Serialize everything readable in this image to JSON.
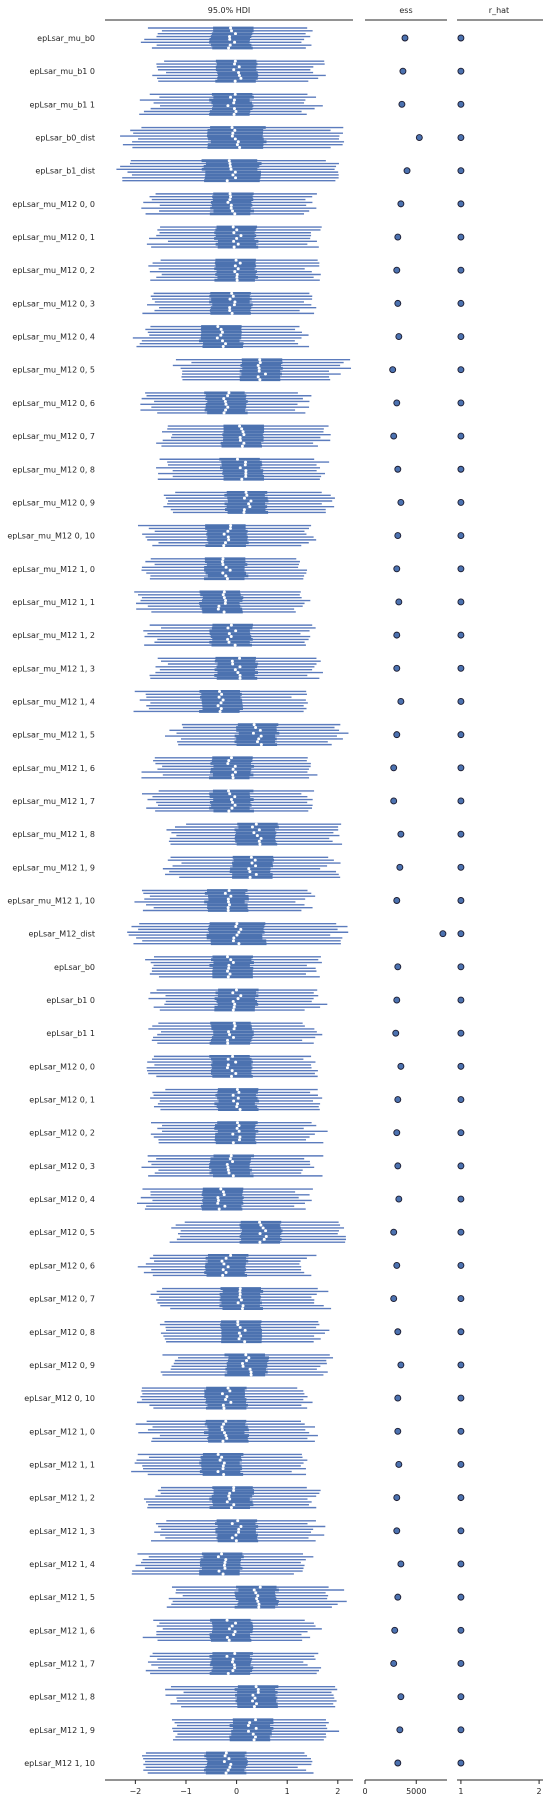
{
  "chart_data": {
    "type": "forest",
    "panels": [
      {
        "title": "95.0% HDI",
        "xlim": [
          -2.6,
          2.3
        ],
        "ticks": [
          -2,
          -1,
          0,
          1,
          2
        ]
      },
      {
        "title": "ess",
        "xlim": [
          0,
          8000
        ],
        "ticks": [
          0,
          5000
        ],
        "tick_labels": [
          "0",
          "5000"
        ]
      },
      {
        "title": "r_hat",
        "xlim": [
          0.95,
          2.05
        ],
        "ticks": [
          1,
          2
        ],
        "tick_labels": [
          "1",
          "2"
        ]
      }
    ],
    "chains": 8,
    "colors": {
      "line": "#5b7bbd",
      "box": "#4c72b0",
      "point": "#ffffff",
      "marker": "#4c72b0",
      "axis": "#262626"
    },
    "rows": [
      {
        "label": "epLsar_mu_b0",
        "center": -0.1,
        "ess": 3900,
        "r_hat": 1.0
      },
      {
        "label": "epLsar_mu_b1 0",
        "center": 0.0,
        "ess": 3700,
        "r_hat": 1.0
      },
      {
        "label": "epLsar_mu_b1 1",
        "center": -0.1,
        "ess": 3600,
        "r_hat": 1.0
      },
      {
        "label": "epLsar_b0_dist",
        "center": 0.0,
        "ess": 5300,
        "r_hat": 1.0
      },
      {
        "label": "epLsar_b1_dist",
        "center": -0.1,
        "ess": 4100,
        "r_hat": 1.0
      },
      {
        "label": "epLsar_mu_M12 0, 0",
        "center": -0.1,
        "ess": 3500,
        "r_hat": 1.0
      },
      {
        "label": "epLsar_mu_M12 0, 1",
        "center": 0.0,
        "ess": 3200,
        "r_hat": 1.0
      },
      {
        "label": "epLsar_mu_M12 0, 2",
        "center": 0.0,
        "ess": 3100,
        "r_hat": 1.0
      },
      {
        "label": "epLsar_mu_M12 0, 3",
        "center": -0.1,
        "ess": 3200,
        "r_hat": 1.0
      },
      {
        "label": "epLsar_mu_M12 0, 4",
        "center": -0.3,
        "ess": 3300,
        "r_hat": 1.0
      },
      {
        "label": "epLsar_mu_M12 0, 5",
        "center": 0.5,
        "ess": 2700,
        "r_hat": 1.0
      },
      {
        "label": "epLsar_mu_M12 0, 6",
        "center": -0.2,
        "ess": 3100,
        "r_hat": 1.0
      },
      {
        "label": "epLsar_mu_M12 0, 7",
        "center": 0.1,
        "ess": 2800,
        "r_hat": 1.0
      },
      {
        "label": "epLsar_mu_M12 0, 8",
        "center": 0.1,
        "ess": 3200,
        "r_hat": 1.0
      },
      {
        "label": "epLsar_mu_M12 0, 9",
        "center": 0.2,
        "ess": 3500,
        "r_hat": 1.0
      },
      {
        "label": "epLsar_mu_M12 0, 10",
        "center": -0.2,
        "ess": 3200,
        "r_hat": 1.0
      },
      {
        "label": "epLsar_mu_M12 1, 0",
        "center": -0.2,
        "ess": 3100,
        "r_hat": 1.0
      },
      {
        "label": "epLsar_mu_M12 1, 1",
        "center": -0.3,
        "ess": 3300,
        "r_hat": 1.0
      },
      {
        "label": "epLsar_mu_M12 1, 2",
        "center": -0.1,
        "ess": 3100,
        "r_hat": 1.0
      },
      {
        "label": "epLsar_mu_M12 1, 3",
        "center": 0.0,
        "ess": 3100,
        "r_hat": 1.0
      },
      {
        "label": "epLsar_mu_M12 1, 4",
        "center": -0.3,
        "ess": 3500,
        "r_hat": 1.0
      },
      {
        "label": "epLsar_mu_M12 1, 5",
        "center": 0.4,
        "ess": 3100,
        "r_hat": 1.0
      },
      {
        "label": "epLsar_mu_M12 1, 6",
        "center": -0.1,
        "ess": 2800,
        "r_hat": 1.0
      },
      {
        "label": "epLsar_mu_M12 1, 7",
        "center": -0.1,
        "ess": 2800,
        "r_hat": 1.0
      },
      {
        "label": "epLsar_mu_M12 1, 8",
        "center": 0.4,
        "ess": 3500,
        "r_hat": 1.0
      },
      {
        "label": "epLsar_mu_M12 1, 9",
        "center": 0.3,
        "ess": 3400,
        "r_hat": 1.0
      },
      {
        "label": "epLsar_mu_M12 1, 10",
        "center": -0.2,
        "ess": 3100,
        "r_hat": 1.0
      },
      {
        "label": "epLsar_M12_dist",
        "center": 0.0,
        "ess": 7600,
        "r_hat": 1.0
      },
      {
        "label": "epLsar_b0",
        "center": -0.1,
        "ess": 3200,
        "r_hat": 1.0
      },
      {
        "label": "epLsar_b1 0",
        "center": 0.0,
        "ess": 3100,
        "r_hat": 1.0
      },
      {
        "label": "epLsar_b1 1",
        "center": -0.1,
        "ess": 3000,
        "r_hat": 1.0
      },
      {
        "label": "epLsar_M12 0, 0",
        "center": -0.1,
        "ess": 3500,
        "r_hat": 1.0
      },
      {
        "label": "epLsar_M12 0, 1",
        "center": 0.0,
        "ess": 3200,
        "r_hat": 1.0
      },
      {
        "label": "epLsar_M12 0, 2",
        "center": 0.0,
        "ess": 3100,
        "r_hat": 1.0
      },
      {
        "label": "epLsar_M12 0, 3",
        "center": -0.1,
        "ess": 3200,
        "r_hat": 1.0
      },
      {
        "label": "epLsar_M12 0, 4",
        "center": -0.3,
        "ess": 3300,
        "r_hat": 1.0
      },
      {
        "label": "epLsar_M12 0, 5",
        "center": 0.5,
        "ess": 2800,
        "r_hat": 1.0
      },
      {
        "label": "epLsar_M12 0, 6",
        "center": -0.2,
        "ess": 3100,
        "r_hat": 1.0
      },
      {
        "label": "epLsar_M12 0, 7",
        "center": 0.1,
        "ess": 2800,
        "r_hat": 1.0
      },
      {
        "label": "epLsar_M12 0, 8",
        "center": 0.1,
        "ess": 3200,
        "r_hat": 1.0
      },
      {
        "label": "epLsar_M12 0, 9",
        "center": 0.2,
        "ess": 3500,
        "r_hat": 1.0
      },
      {
        "label": "epLsar_M12 0, 10",
        "center": -0.2,
        "ess": 3200,
        "r_hat": 1.0
      },
      {
        "label": "epLsar_M12 1, 0",
        "center": -0.2,
        "ess": 3200,
        "r_hat": 1.0
      },
      {
        "label": "epLsar_M12 1, 1",
        "center": -0.3,
        "ess": 3300,
        "r_hat": 1.0
      },
      {
        "label": "epLsar_M12 1, 2",
        "center": -0.1,
        "ess": 3100,
        "r_hat": 1.0
      },
      {
        "label": "epLsar_M12 1, 3",
        "center": 0.0,
        "ess": 3100,
        "r_hat": 1.0
      },
      {
        "label": "epLsar_M12 1, 4",
        "center": -0.3,
        "ess": 3500,
        "r_hat": 1.0
      },
      {
        "label": "epLsar_M12 1, 5",
        "center": 0.4,
        "ess": 3200,
        "r_hat": 1.0
      },
      {
        "label": "epLsar_M12 1, 6",
        "center": -0.1,
        "ess": 2900,
        "r_hat": 1.0
      },
      {
        "label": "epLsar_M12 1, 7",
        "center": -0.1,
        "ess": 2800,
        "r_hat": 1.0
      },
      {
        "label": "epLsar_M12 1, 8",
        "center": 0.4,
        "ess": 3500,
        "r_hat": 1.0
      },
      {
        "label": "epLsar_M12 1, 9",
        "center": 0.3,
        "ess": 3400,
        "r_hat": 1.0
      },
      {
        "label": "epLsar_M12 1, 10",
        "center": -0.2,
        "ess": 3200,
        "r_hat": 1.0
      }
    ]
  }
}
